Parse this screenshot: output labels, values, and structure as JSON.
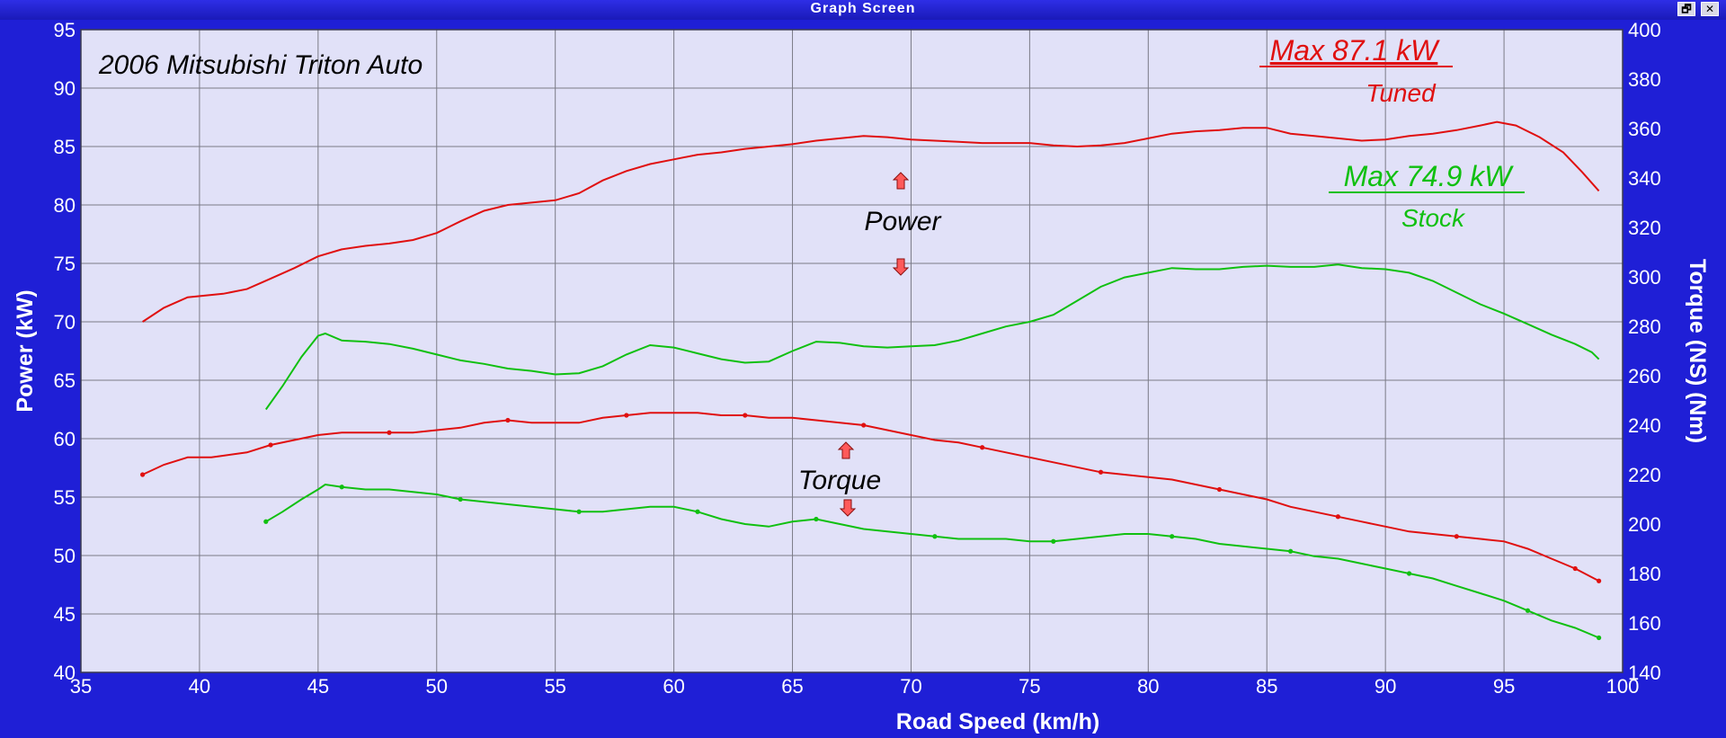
{
  "window": {
    "title": "Graph Screen",
    "restore_glyph": "🗗",
    "close_glyph": "✕"
  },
  "colors": {
    "background": "#1f1fd6",
    "plot_area": "#e1e1f8",
    "grid": "#7a7a86",
    "tuned": "#e01010",
    "stock": "#10c010",
    "axis_text": "#ffffff",
    "marker": "#ff5a5a"
  },
  "chart_data": {
    "type": "line",
    "title": "2006 Mitsubishi Triton Auto",
    "xlabel": "Road Speed (km/h)",
    "ylabel_left": "Power (kW)",
    "ylabel_right": "Torque (NS) (Nm)",
    "xlim": [
      35,
      100
    ],
    "ylim_left": [
      40,
      95
    ],
    "ylim_right": [
      140,
      400
    ],
    "x_ticks": [
      35,
      40,
      45,
      50,
      55,
      60,
      65,
      70,
      75,
      80,
      85,
      90,
      95,
      100
    ],
    "y_ticks_left": [
      40,
      45,
      50,
      55,
      60,
      65,
      70,
      75,
      80,
      85,
      90,
      95
    ],
    "y_ticks_right": [
      140,
      160,
      180,
      200,
      220,
      240,
      260,
      280,
      300,
      320,
      340,
      360,
      380,
      400
    ],
    "grid": true,
    "annotations": {
      "tuned_max": "Max 87.1 kW",
      "tuned_label": "Tuned",
      "stock_max": "Max 74.9 kW",
      "stock_label": "Stock",
      "power_label": "Power",
      "torque_label": "Torque"
    },
    "series": [
      {
        "color": "#e01010",
        "axis": "left",
        "markers": false,
        "points": [
          [
            37.6,
            70.0
          ],
          [
            38.5,
            71.2
          ],
          [
            39.5,
            72.1
          ],
          [
            41,
            72.4
          ],
          [
            42,
            72.8
          ],
          [
            43,
            73.7
          ],
          [
            44,
            74.6
          ],
          [
            45,
            75.6
          ],
          [
            46,
            76.2
          ],
          [
            47,
            76.5
          ],
          [
            48,
            76.7
          ],
          [
            49,
            77.0
          ],
          [
            50,
            77.6
          ],
          [
            51,
            78.6
          ],
          [
            52,
            79.5
          ],
          [
            53,
            80.0
          ],
          [
            54,
            80.2
          ],
          [
            55,
            80.4
          ],
          [
            56,
            81.0
          ],
          [
            57,
            82.1
          ],
          [
            58,
            82.9
          ],
          [
            59,
            83.5
          ],
          [
            60,
            83.9
          ],
          [
            61,
            84.3
          ],
          [
            62,
            84.5
          ],
          [
            63,
            84.8
          ],
          [
            64,
            85.0
          ],
          [
            65,
            85.2
          ],
          [
            66,
            85.5
          ],
          [
            67,
            85.7
          ],
          [
            68,
            85.9
          ],
          [
            69,
            85.8
          ],
          [
            70,
            85.6
          ],
          [
            71,
            85.5
          ],
          [
            72,
            85.4
          ],
          [
            73,
            85.3
          ],
          [
            74,
            85.3
          ],
          [
            75,
            85.3
          ],
          [
            76,
            85.1
          ],
          [
            77,
            85.0
          ],
          [
            78,
            85.1
          ],
          [
            79,
            85.3
          ],
          [
            80,
            85.7
          ],
          [
            81,
            86.1
          ],
          [
            82,
            86.3
          ],
          [
            83,
            86.4
          ],
          [
            84,
            86.6
          ],
          [
            85,
            86.6
          ],
          [
            86,
            86.1
          ],
          [
            87,
            85.9
          ],
          [
            88,
            85.7
          ],
          [
            89,
            85.5
          ],
          [
            90,
            85.6
          ],
          [
            91,
            85.9
          ],
          [
            92,
            86.1
          ],
          [
            93,
            86.4
          ],
          [
            94,
            86.8
          ],
          [
            94.7,
            87.1
          ],
          [
            95.5,
            86.8
          ],
          [
            96.5,
            85.8
          ],
          [
            97.5,
            84.5
          ],
          [
            98.3,
            82.8
          ],
          [
            99,
            81.2
          ]
        ]
      },
      {
        "color": "#10c010",
        "axis": "left",
        "markers": false,
        "points": [
          [
            42.8,
            62.5
          ],
          [
            43.5,
            64.5
          ],
          [
            44.3,
            67.0
          ],
          [
            45.0,
            68.8
          ],
          [
            45.3,
            69.0
          ],
          [
            46,
            68.4
          ],
          [
            47,
            68.3
          ],
          [
            48,
            68.1
          ],
          [
            49,
            67.7
          ],
          [
            50,
            67.2
          ],
          [
            51,
            66.7
          ],
          [
            52,
            66.4
          ],
          [
            53,
            66.0
          ],
          [
            54,
            65.8
          ],
          [
            55,
            65.5
          ],
          [
            56,
            65.6
          ],
          [
            57,
            66.2
          ],
          [
            58,
            67.2
          ],
          [
            59,
            68.0
          ],
          [
            60,
            67.8
          ],
          [
            61,
            67.3
          ],
          [
            62,
            66.8
          ],
          [
            63,
            66.5
          ],
          [
            64,
            66.6
          ],
          [
            65,
            67.5
          ],
          [
            66,
            68.3
          ],
          [
            67,
            68.2
          ],
          [
            68,
            67.9
          ],
          [
            69,
            67.8
          ],
          [
            70,
            67.9
          ],
          [
            71,
            68.0
          ],
          [
            72,
            68.4
          ],
          [
            73,
            69.0
          ],
          [
            74,
            69.6
          ],
          [
            75,
            70.0
          ],
          [
            76,
            70.6
          ],
          [
            77,
            71.8
          ],
          [
            78,
            73.0
          ],
          [
            79,
            73.8
          ],
          [
            80,
            74.2
          ],
          [
            81,
            74.6
          ],
          [
            82,
            74.5
          ],
          [
            83,
            74.5
          ],
          [
            84,
            74.7
          ],
          [
            85,
            74.8
          ],
          [
            86,
            74.7
          ],
          [
            87,
            74.7
          ],
          [
            88,
            74.9
          ],
          [
            89,
            74.6
          ],
          [
            90,
            74.5
          ],
          [
            91,
            74.2
          ],
          [
            92,
            73.5
          ],
          [
            93,
            72.5
          ],
          [
            94,
            71.5
          ],
          [
            95,
            70.7
          ],
          [
            96,
            69.8
          ],
          [
            97,
            68.9
          ],
          [
            98,
            68.1
          ],
          [
            98.7,
            67.4
          ],
          [
            99,
            66.8
          ]
        ]
      },
      {
        "color": "#e01010",
        "axis": "right",
        "markers": true,
        "points": [
          [
            37.6,
            220
          ],
          [
            38.5,
            224
          ],
          [
            39.5,
            227
          ],
          [
            40.5,
            227
          ],
          [
            42,
            229
          ],
          [
            43,
            232
          ],
          [
            44,
            234
          ],
          [
            45,
            236
          ],
          [
            46,
            237
          ],
          [
            47,
            237
          ],
          [
            48,
            237
          ],
          [
            49,
            237
          ],
          [
            50,
            238
          ],
          [
            51,
            239
          ],
          [
            52,
            241
          ],
          [
            53,
            242
          ],
          [
            54,
            241
          ],
          [
            55,
            241
          ],
          [
            56,
            241
          ],
          [
            57,
            243
          ],
          [
            58,
            244
          ],
          [
            59,
            245
          ],
          [
            60,
            245
          ],
          [
            61,
            245
          ],
          [
            62,
            244
          ],
          [
            63,
            244
          ],
          [
            64,
            243
          ],
          [
            65,
            243
          ],
          [
            66,
            242
          ],
          [
            67,
            241
          ],
          [
            68,
            240
          ],
          [
            69,
            238
          ],
          [
            70,
            236
          ],
          [
            71,
            234
          ],
          [
            72,
            233
          ],
          [
            73,
            231
          ],
          [
            74,
            229
          ],
          [
            75,
            227
          ],
          [
            76,
            225
          ],
          [
            77,
            223
          ],
          [
            78,
            221
          ],
          [
            79,
            220
          ],
          [
            80,
            219
          ],
          [
            81,
            218
          ],
          [
            82,
            216
          ],
          [
            83,
            214
          ],
          [
            84,
            212
          ],
          [
            85,
            210
          ],
          [
            86,
            207
          ],
          [
            87,
            205
          ],
          [
            88,
            203
          ],
          [
            89,
            201
          ],
          [
            90,
            199
          ],
          [
            91,
            197
          ],
          [
            92,
            196
          ],
          [
            93,
            195
          ],
          [
            94,
            194
          ],
          [
            95,
            193
          ],
          [
            96,
            190
          ],
          [
            97,
            186
          ],
          [
            98,
            182
          ],
          [
            99,
            177
          ]
        ]
      },
      {
        "color": "#10c010",
        "axis": "right",
        "markers": true,
        "points": [
          [
            42.8,
            201
          ],
          [
            43.5,
            205
          ],
          [
            44.3,
            210
          ],
          [
            45.0,
            214
          ],
          [
            45.3,
            216
          ],
          [
            46,
            215
          ],
          [
            47,
            214
          ],
          [
            48,
            214
          ],
          [
            49,
            213
          ],
          [
            50,
            212
          ],
          [
            51,
            210
          ],
          [
            52,
            209
          ],
          [
            53,
            208
          ],
          [
            54,
            207
          ],
          [
            55,
            206
          ],
          [
            56,
            205
          ],
          [
            57,
            205
          ],
          [
            58,
            206
          ],
          [
            59,
            207
          ],
          [
            60,
            207
          ],
          [
            61,
            205
          ],
          [
            62,
            202
          ],
          [
            63,
            200
          ],
          [
            64,
            199
          ],
          [
            65,
            201
          ],
          [
            66,
            202
          ],
          [
            67,
            200
          ],
          [
            68,
            198
          ],
          [
            69,
            197
          ],
          [
            70,
            196
          ],
          [
            71,
            195
          ],
          [
            72,
            194
          ],
          [
            73,
            194
          ],
          [
            74,
            194
          ],
          [
            75,
            193
          ],
          [
            76,
            193
          ],
          [
            77,
            194
          ],
          [
            78,
            195
          ],
          [
            79,
            196
          ],
          [
            80,
            196
          ],
          [
            81,
            195
          ],
          [
            82,
            194
          ],
          [
            83,
            192
          ],
          [
            84,
            191
          ],
          [
            85,
            190
          ],
          [
            86,
            189
          ],
          [
            87,
            187
          ],
          [
            88,
            186
          ],
          [
            89,
            184
          ],
          [
            90,
            182
          ],
          [
            91,
            180
          ],
          [
            92,
            178
          ],
          [
            93,
            175
          ],
          [
            94,
            172
          ],
          [
            95,
            169
          ],
          [
            96,
            165
          ],
          [
            97,
            161
          ],
          [
            98,
            158
          ],
          [
            99,
            154
          ]
        ]
      }
    ]
  }
}
